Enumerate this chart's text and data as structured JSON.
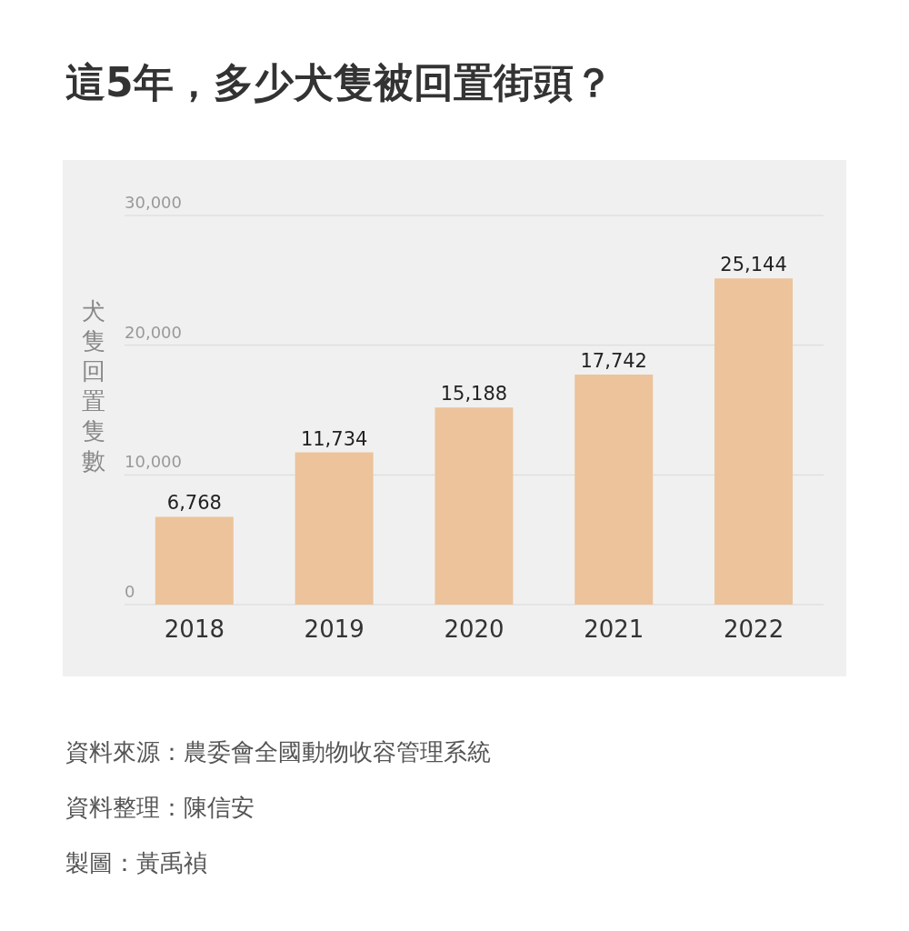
{
  "chart_data": {
    "type": "bar",
    "title": "這5年，多少犬隻被回置街頭？",
    "ylabel": "犬隻回置隻數",
    "categories": [
      "2018",
      "2019",
      "2020",
      "2021",
      "2022"
    ],
    "values": [
      6768,
      11734,
      15188,
      17742,
      25144
    ],
    "color": "#ecc39b",
    "ylim": [
      0,
      30000
    ],
    "yticks": [
      {
        "value": 0,
        "label": "0"
      },
      {
        "value": 10000,
        "label": "10,000"
      },
      {
        "value": 20000,
        "label": "20,000"
      },
      {
        "value": 30000,
        "label": "30,000"
      }
    ],
    "grid": "y",
    "value_labels": [
      "6,768",
      "11,734",
      "15,188",
      "17,742",
      "25,144"
    ],
    "annotations": [
      "資料來源：農委會全國動物收容管理系統",
      "資料整理：陳信安",
      "製圖：黃禹禎"
    ]
  }
}
